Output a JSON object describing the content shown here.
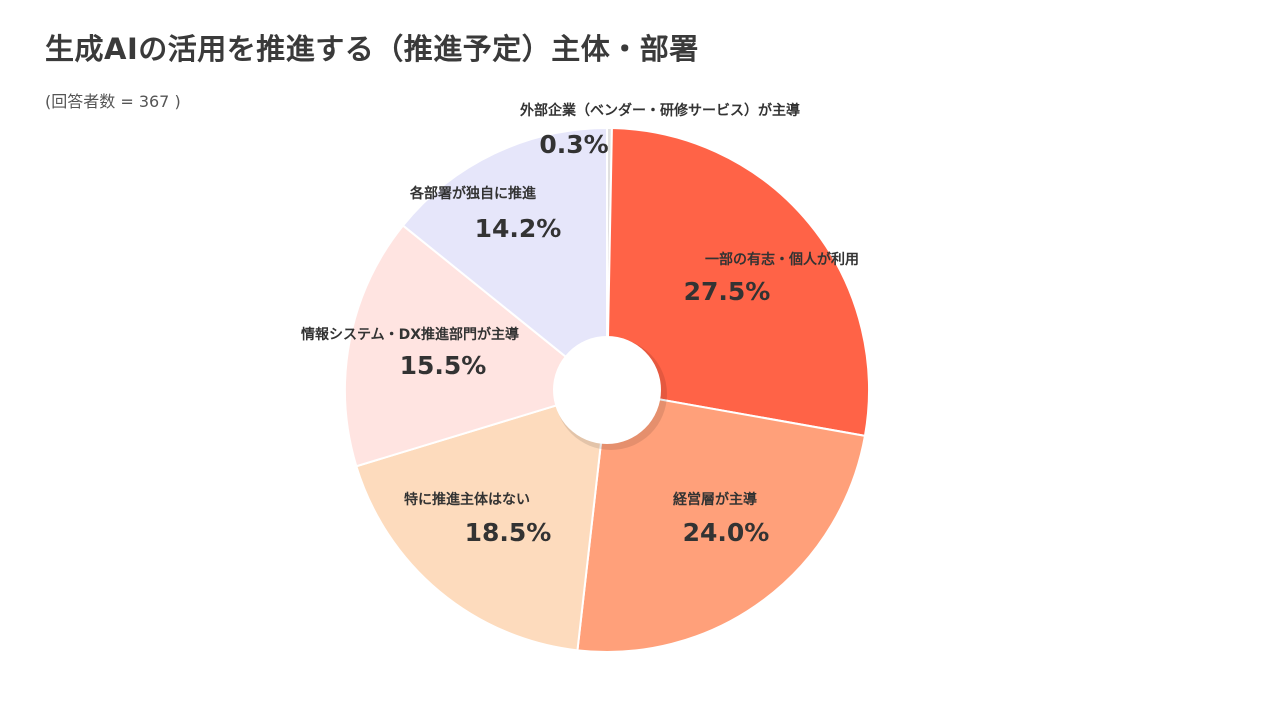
{
  "header": {
    "title": "生成AIの活用を推進する（推進予定）主体・部署",
    "subtitle": "(回答者数 = 367 )"
  },
  "chart_data": {
    "type": "pie",
    "title": "生成AIの活用を推進する（推進予定）主体・部署",
    "subtitle": "(回答者数 = 367 )",
    "legend": "none",
    "slices": [
      {
        "label": "外部企業（ベンダー・研修サービス）が主導",
        "value": 0.3,
        "value_label": "0.3%",
        "color": "#e0e0e0"
      },
      {
        "label": "一部の有志・個人が利用",
        "value": 27.5,
        "value_label": "27.5%",
        "color": "#ff6347"
      },
      {
        "label": "経営層が主導",
        "value": 24.0,
        "value_label": "24.0%",
        "color": "#ffa07a"
      },
      {
        "label": "特に推進主体はない",
        "value": 18.5,
        "value_label": "18.5%",
        "color": "#fddbbd"
      },
      {
        "label": "情報システム・DX推進部門が主導",
        "value": 15.5,
        "value_label": "15.5%",
        "color": "#ffe4e1"
      },
      {
        "label": "各部署が独自に推進",
        "value": 14.2,
        "value_label": "14.2%",
        "color": "#e6e6fa"
      }
    ]
  }
}
